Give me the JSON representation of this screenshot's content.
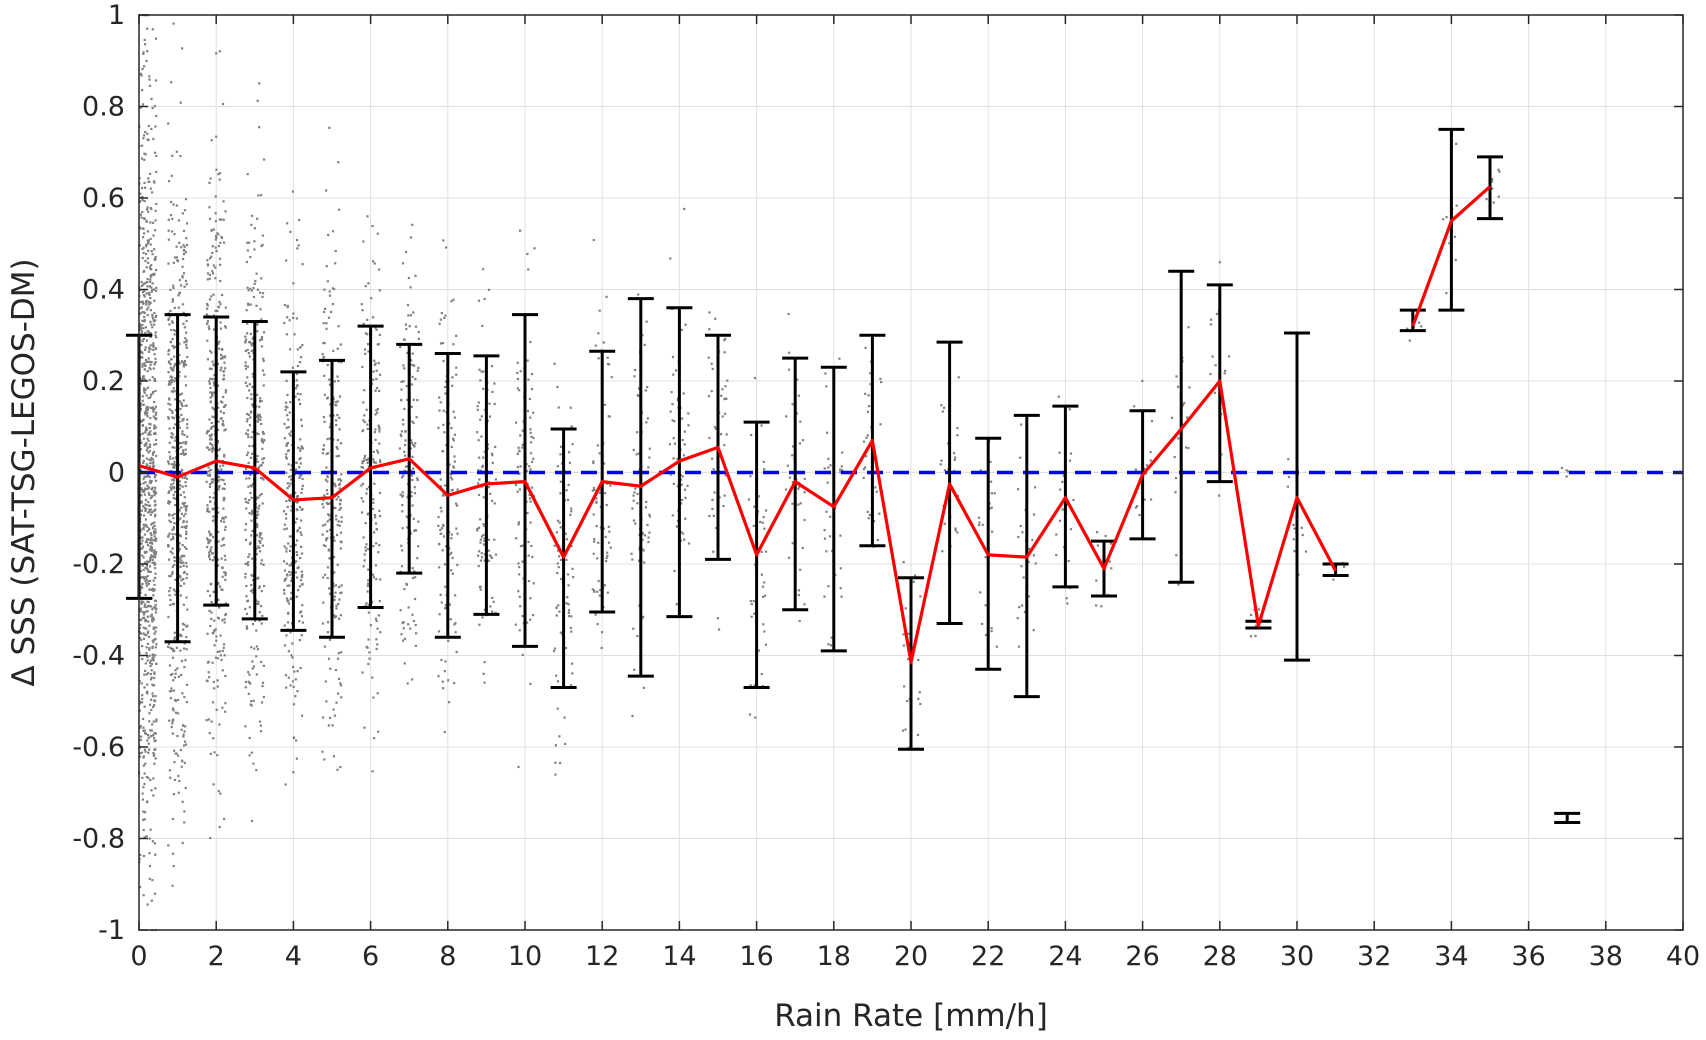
{
  "chart_data": {
    "type": "scatter",
    "title": "",
    "xlabel": "Rain Rate [mm/h]",
    "ylabel": "Δ SSS (SAT-TSG-LEGOS-DM)",
    "xlim": [
      0,
      40
    ],
    "ylim": [
      -1,
      1
    ],
    "x_ticks": [
      "0",
      "2",
      "4",
      "6",
      "8",
      "10",
      "12",
      "14",
      "16",
      "18",
      "20",
      "22",
      "24",
      "26",
      "28",
      "30",
      "32",
      "34",
      "36",
      "38",
      "40"
    ],
    "y_ticks": [
      "1",
      "0.8",
      "0.6",
      "0.4",
      "0.2",
      "0",
      "-0.2",
      "-0.4",
      "-0.6",
      "-0.8",
      "-1"
    ],
    "grid": true,
    "legend": "none",
    "colors": {
      "scatter": "#808080",
      "mean_line": "#ff0000",
      "error_bars": "#000000",
      "zero_line": "#0000ff",
      "grid": "#e0e0e0",
      "axes": "#262626"
    },
    "reference_line": {
      "y": 0,
      "style": "dashed"
    },
    "mean_line": {
      "segments": [
        {
          "x": [
            0,
            1,
            2,
            3,
            4,
            5,
            6,
            7,
            8,
            9,
            10,
            11,
            12,
            13,
            14,
            15,
            16,
            17,
            18,
            19,
            20,
            21,
            22,
            23,
            24,
            25,
            26,
            27,
            28,
            29,
            30,
            31
          ],
          "y": [
            0.015,
            -0.01,
            0.025,
            0.01,
            -0.06,
            -0.055,
            0.01,
            0.03,
            -0.05,
            -0.025,
            -0.02,
            -0.185,
            -0.02,
            -0.03,
            0.025,
            0.055,
            -0.18,
            -0.02,
            -0.075,
            0.07,
            -0.415,
            -0.025,
            -0.18,
            -0.185,
            -0.055,
            -0.21,
            -0.005,
            0.095,
            0.2,
            -0.335,
            -0.055,
            -0.215
          ]
        },
        {
          "x": [
            33,
            34,
            35
          ],
          "y": [
            0.32,
            0.55,
            0.625
          ]
        }
      ]
    },
    "error_bars": [
      {
        "x": 0,
        "low": -0.275,
        "high": 0.3
      },
      {
        "x": 1,
        "low": -0.37,
        "high": 0.345
      },
      {
        "x": 2,
        "low": -0.29,
        "high": 0.34
      },
      {
        "x": 3,
        "low": -0.32,
        "high": 0.33
      },
      {
        "x": 4,
        "low": -0.345,
        "high": 0.22
      },
      {
        "x": 5,
        "low": -0.36,
        "high": 0.245
      },
      {
        "x": 6,
        "low": -0.295,
        "high": 0.32
      },
      {
        "x": 7,
        "low": -0.22,
        "high": 0.28
      },
      {
        "x": 8,
        "low": -0.36,
        "high": 0.26
      },
      {
        "x": 9,
        "low": -0.31,
        "high": 0.255
      },
      {
        "x": 10,
        "low": -0.38,
        "high": 0.345
      },
      {
        "x": 11,
        "low": -0.47,
        "high": 0.095
      },
      {
        "x": 12,
        "low": -0.305,
        "high": 0.265
      },
      {
        "x": 13,
        "low": -0.445,
        "high": 0.38
      },
      {
        "x": 14,
        "low": -0.315,
        "high": 0.36
      },
      {
        "x": 15,
        "low": -0.19,
        "high": 0.3
      },
      {
        "x": 16,
        "low": -0.47,
        "high": 0.11
      },
      {
        "x": 17,
        "low": -0.3,
        "high": 0.25
      },
      {
        "x": 18,
        "low": -0.39,
        "high": 0.23
      },
      {
        "x": 19,
        "low": -0.16,
        "high": 0.3
      },
      {
        "x": 20,
        "low": -0.605,
        "high": -0.23
      },
      {
        "x": 21,
        "low": -0.33,
        "high": 0.285
      },
      {
        "x": 22,
        "low": -0.43,
        "high": 0.075
      },
      {
        "x": 23,
        "low": -0.49,
        "high": 0.125
      },
      {
        "x": 24,
        "low": -0.25,
        "high": 0.145
      },
      {
        "x": 25,
        "low": -0.27,
        "high": -0.15
      },
      {
        "x": 26,
        "low": -0.145,
        "high": 0.135
      },
      {
        "x": 27,
        "low": -0.24,
        "high": 0.44
      },
      {
        "x": 28,
        "low": -0.02,
        "high": 0.41
      },
      {
        "x": 29,
        "low": -0.34,
        "high": -0.325
      },
      {
        "x": 30,
        "low": -0.41,
        "high": 0.305
      },
      {
        "x": 31,
        "low": -0.225,
        "high": -0.2
      },
      {
        "x": 33,
        "low": 0.31,
        "high": 0.355
      },
      {
        "x": 34,
        "low": 0.355,
        "high": 0.75
      },
      {
        "x": 35,
        "low": 0.555,
        "high": 0.69
      },
      {
        "x": 37,
        "low": -0.765,
        "high": -0.745
      }
    ],
    "scatter_density": [
      {
        "x": 0,
        "spread": 0.9,
        "count": 900
      },
      {
        "x": 1,
        "spread": 0.75,
        "count": 520
      },
      {
        "x": 2,
        "spread": 0.7,
        "count": 420
      },
      {
        "x": 3,
        "spread": 0.65,
        "count": 340
      },
      {
        "x": 4,
        "spread": 0.6,
        "count": 260
      },
      {
        "x": 5,
        "spread": 0.6,
        "count": 220
      },
      {
        "x": 6,
        "spread": 0.55,
        "count": 180
      },
      {
        "x": 7,
        "spread": 0.5,
        "count": 150
      },
      {
        "x": 8,
        "spread": 0.5,
        "count": 130
      },
      {
        "x": 9,
        "spread": 0.45,
        "count": 110
      },
      {
        "x": 10,
        "spread": 0.5,
        "count": 100
      },
      {
        "x": 11,
        "spread": 0.45,
        "count": 80
      },
      {
        "x": 12,
        "spread": 0.4,
        "count": 70
      },
      {
        "x": 13,
        "spread": 0.45,
        "count": 70
      },
      {
        "x": 14,
        "spread": 0.4,
        "count": 60
      },
      {
        "x": 15,
        "spread": 0.35,
        "count": 50
      },
      {
        "x": 16,
        "spread": 0.4,
        "count": 45
      },
      {
        "x": 17,
        "spread": 0.35,
        "count": 40
      },
      {
        "x": 18,
        "spread": 0.35,
        "count": 35
      },
      {
        "x": 19,
        "spread": 0.3,
        "count": 30
      },
      {
        "x": 20,
        "spread": 0.25,
        "count": 25
      },
      {
        "x": 21,
        "spread": 0.35,
        "count": 30
      },
      {
        "x": 22,
        "spread": 0.3,
        "count": 25
      },
      {
        "x": 23,
        "spread": 0.3,
        "count": 25
      },
      {
        "x": 24,
        "spread": 0.25,
        "count": 20
      },
      {
        "x": 25,
        "spread": 0.15,
        "count": 15
      },
      {
        "x": 26,
        "spread": 0.2,
        "count": 15
      },
      {
        "x": 27,
        "spread": 0.3,
        "count": 20
      },
      {
        "x": 28,
        "spread": 0.25,
        "count": 15
      },
      {
        "x": 29,
        "spread": 0.05,
        "count": 8
      },
      {
        "x": 30,
        "spread": 0.3,
        "count": 12
      },
      {
        "x": 31,
        "spread": 0.05,
        "count": 6
      },
      {
        "x": 33,
        "spread": 0.05,
        "count": 6
      },
      {
        "x": 34,
        "spread": 0.2,
        "count": 10
      },
      {
        "x": 35,
        "spread": 0.07,
        "count": 8
      },
      {
        "x": 37,
        "spread": 0.02,
        "count": 4
      }
    ]
  }
}
